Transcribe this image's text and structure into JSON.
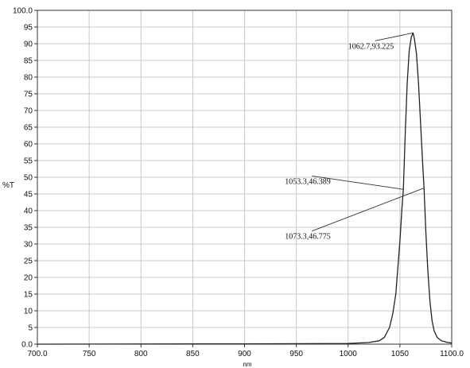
{
  "chart_data": {
    "type": "line",
    "title": "",
    "xlabel": "nm",
    "ylabel": "%T",
    "xlim": [
      700,
      1100
    ],
    "ylim": [
      0,
      100
    ],
    "grid": true,
    "x_ticks": [
      "700.0",
      "750",
      "800",
      "850",
      "900",
      "950",
      "1000",
      "1050",
      "1100.0"
    ],
    "y_ticks": [
      "0.0",
      "5",
      "10",
      "15",
      "20",
      "25",
      "30",
      "35",
      "40",
      "45",
      "50",
      "55",
      "60",
      "65",
      "70",
      "75",
      "80",
      "85",
      "90",
      "95",
      "100.0"
    ],
    "series": [
      {
        "x": [
          700,
          900,
          1000,
          1020,
          1030,
          1035,
          1040,
          1043,
          1046,
          1048,
          1050,
          1052,
          1053.3,
          1055,
          1057,
          1059,
          1061,
          1062.7,
          1064,
          1066,
          1068,
          1070,
          1072,
          1073.3,
          1075,
          1077,
          1079,
          1081,
          1083,
          1086,
          1090,
          1095,
          1100
        ],
        "y": [
          0,
          0.1,
          0.2,
          0.5,
          1,
          2,
          5,
          9,
          15,
          23,
          31,
          41,
          46.389,
          62,
          78,
          88,
          92,
          93.225,
          91.5,
          87,
          78,
          66,
          54,
          46.775,
          34,
          22,
          13,
          7,
          4,
          2,
          1,
          0.6,
          0.3
        ],
        "color": "#222222"
      }
    ],
    "annotations": [
      {
        "text": "1062.7,93.225",
        "point": [
          1062.7,
          93.225
        ],
        "label_at": [
          1000,
          88.5
        ]
      },
      {
        "text": "1053.3,46.389",
        "point": [
          1053.3,
          46.389
        ],
        "label_at": [
          939,
          48
        ]
      },
      {
        "text": "1073.3,46.775",
        "point": [
          1073.3,
          46.775
        ],
        "label_at": [
          939,
          31.5
        ]
      }
    ]
  }
}
